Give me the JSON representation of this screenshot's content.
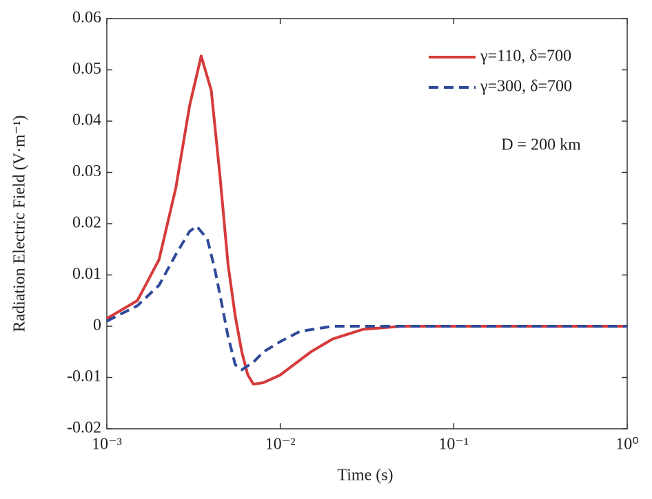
{
  "chart_data": {
    "type": "line",
    "xlabel": "Time (s)",
    "ylabel": "Radiation Electric Field (V·m⁻¹)",
    "annotation": "D = 200 km",
    "xscale": "log",
    "xlim": [
      0.001,
      1
    ],
    "xticks": [
      {
        "value": 0.001,
        "label": "10⁻³"
      },
      {
        "value": 0.01,
        "label": "10⁻²"
      },
      {
        "value": 0.1,
        "label": "10⁻¹"
      },
      {
        "value": 1,
        "label": "10⁰"
      }
    ],
    "ylim": [
      -0.02,
      0.06
    ],
    "yticks": [
      -0.02,
      -0.01,
      0,
      0.01,
      0.02,
      0.03,
      0.04,
      0.05,
      0.06
    ],
    "legend": "upper right",
    "series": [
      {
        "name": "γ=110, δ=700",
        "color": "#d63a3a",
        "dash": false,
        "x": [
          0.001,
          0.0015,
          0.002,
          0.0025,
          0.003,
          0.0035,
          0.004,
          0.0045,
          0.005,
          0.0055,
          0.006,
          0.0065,
          0.007,
          0.008,
          0.01,
          0.015,
          0.02,
          0.03,
          0.05,
          0.1,
          1
        ],
        "values": [
          0.0015,
          0.005,
          0.013,
          0.027,
          0.043,
          0.0527,
          0.046,
          0.029,
          0.012,
          0.002,
          -0.005,
          -0.0095,
          -0.0113,
          -0.011,
          -0.0095,
          -0.005,
          -0.0025,
          -0.0006,
          0,
          0,
          0
        ]
      },
      {
        "name": "γ=300, δ=700",
        "color": "#2f4a9a",
        "dash": true,
        "x": [
          0.001,
          0.0015,
          0.002,
          0.0025,
          0.003,
          0.0033,
          0.0038,
          0.0042,
          0.0045,
          0.005,
          0.0055,
          0.006,
          0.007,
          0.008,
          0.01,
          0.013,
          0.02,
          1
        ],
        "values": [
          0.001,
          0.004,
          0.008,
          0.014,
          0.0185,
          0.0195,
          0.017,
          0.011,
          0.006,
          -0.002,
          -0.0075,
          -0.0085,
          -0.007,
          -0.005,
          -0.003,
          -0.001,
          0,
          0
        ]
      }
    ]
  }
}
